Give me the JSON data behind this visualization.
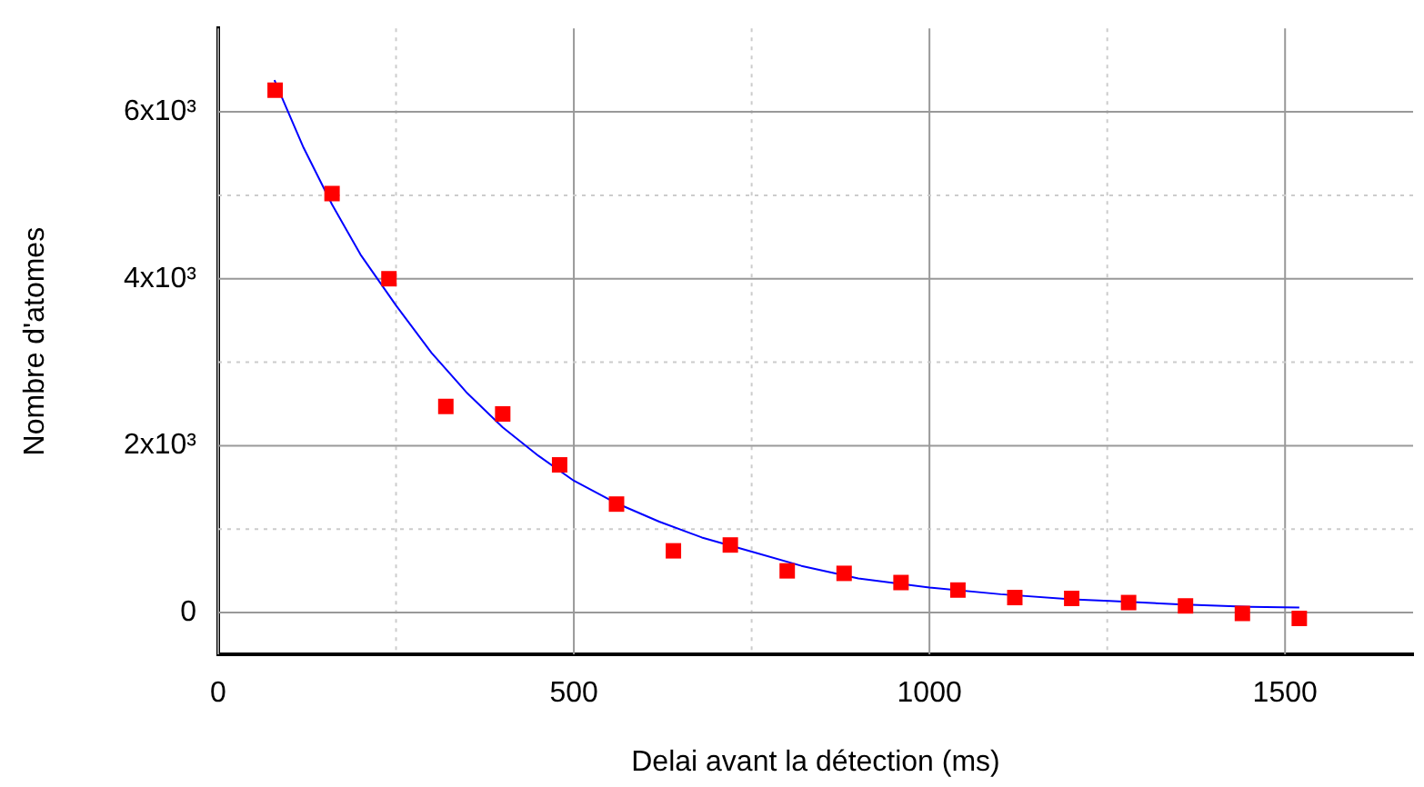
{
  "chart_data": {
    "type": "scatter",
    "xlabel": "Delai avant la détection (ms)",
    "ylabel": "Nombre d'atomes",
    "xlim": [
      0,
      1680
    ],
    "ylim": [
      -500,
      7000
    ],
    "xticks": [
      0,
      {
        "value": 250,
        "label": null
      },
      500,
      {
        "value": 750,
        "label": null
      },
      1000,
      {
        "value": 1250,
        "label": null
      },
      1500
    ],
    "yticks": [
      {
        "value": 0,
        "label": "0"
      },
      {
        "value": 1000,
        "label": null
      },
      {
        "value": 2000,
        "label": "2x10³"
      },
      {
        "value": 3000,
        "label": null
      },
      {
        "value": 4000,
        "label": "4x10³"
      },
      {
        "value": 5000,
        "label": null
      },
      {
        "value": 6000,
        "label": "6x10³"
      }
    ],
    "grid": true,
    "legend": false,
    "series": [
      {
        "marker": "square",
        "color": "#ff0000",
        "x": [
          80,
          160,
          240,
          320,
          400,
          480,
          560,
          640,
          720,
          800,
          880,
          960,
          1040,
          1120,
          1200,
          1280,
          1360,
          1440,
          1520
        ],
        "values": [
          6260,
          5020,
          4000,
          2470,
          2380,
          1770,
          1300,
          740,
          810,
          500,
          470,
          360,
          270,
          180,
          170,
          120,
          80,
          -10,
          -70
        ]
      },
      {
        "type": "line",
        "marker": "none",
        "line_style": "solid",
        "color": "#0000ff",
        "x": [
          79,
          120,
          160,
          200,
          250,
          300,
          350,
          400,
          450,
          500,
          560,
          620,
          680,
          750,
          820,
          900,
          1000,
          1100,
          1200,
          1253,
          1350,
          1450,
          1520
        ],
        "values": [
          6380,
          5570,
          4890,
          4290,
          3680,
          3110,
          2630,
          2220,
          1880,
          1580,
          1310,
          1090,
          900,
          730,
          560,
          410,
          300,
          220,
          160,
          140,
          100,
          70,
          60
        ]
      }
    ]
  }
}
